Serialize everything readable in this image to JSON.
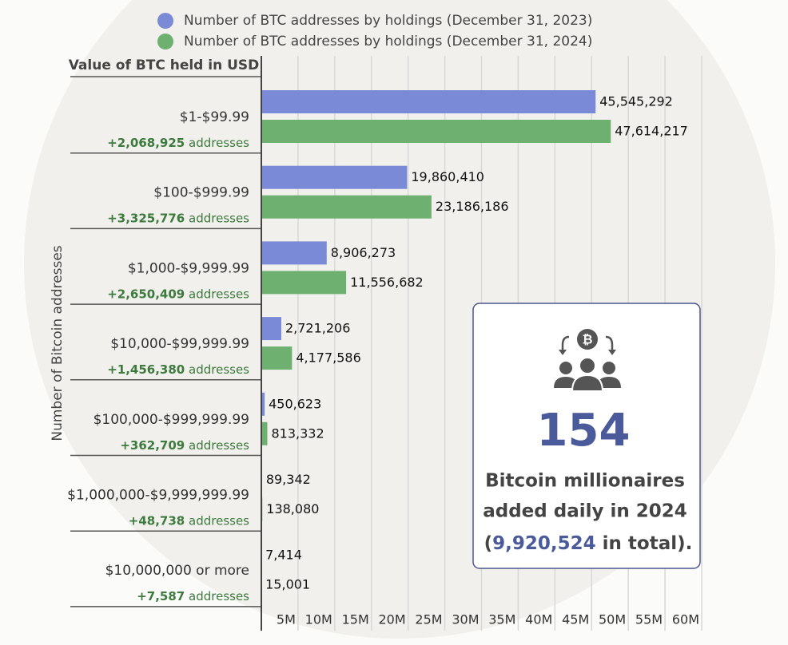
{
  "chart_data": {
    "type": "hbar",
    "y_label": "Number of Bitcoin addresses",
    "category_header": "Value of BTC held in USD",
    "categories": [
      "$1-$99.99",
      "$100-$999.99",
      "$1,000-$9,999.99",
      "$10,000-$99,999.99",
      "$100,000-$999,999.99",
      "$1,000,000-$9,999,999.99",
      "$10,000,000 or more"
    ],
    "change_labels": [
      "+2,068,925",
      "+3,325,776",
      "+2,650,409",
      "+1,456,380",
      "+362,709",
      "+48,738",
      "+7,587"
    ],
    "change_unit": "addresses",
    "series": [
      {
        "name": "Number of BTC addresses by holdings (December 31, 2023)",
        "color": "#7b8ad6",
        "values": [
          45545292,
          19860410,
          8906273,
          2721206,
          450623,
          89342,
          7414
        ],
        "value_labels": [
          "45,545,292",
          "19,860,410",
          "8,906,273",
          "2,721,206",
          "450,623",
          "89,342",
          "7,414"
        ]
      },
      {
        "name": "Number of BTC addresses by holdings (December 31, 2024)",
        "color": "#6db06f",
        "values": [
          47614217,
          23186186,
          11556682,
          4177586,
          813332,
          138080,
          15001
        ],
        "value_labels": [
          "47,614,217",
          "23,186,186",
          "11,556,682",
          "4,177,586",
          "813,332",
          "138,080",
          "15,001"
        ]
      }
    ],
    "xlim": [
      0,
      60000000
    ],
    "xticks": [
      {
        "value": 5000000,
        "label": "5M"
      },
      {
        "value": 10000000,
        "label": "10M"
      },
      {
        "value": 15000000,
        "label": "15M"
      },
      {
        "value": 20000000,
        "label": "20M"
      },
      {
        "value": 25000000,
        "label": "25M"
      },
      {
        "value": 30000000,
        "label": "30M"
      },
      {
        "value": 35000000,
        "label": "35M"
      },
      {
        "value": 40000000,
        "label": "40M"
      },
      {
        "value": 45000000,
        "label": "45M"
      },
      {
        "value": 50000000,
        "label": "50M"
      },
      {
        "value": 55000000,
        "label": "55M"
      },
      {
        "value": 60000000,
        "label": "60M"
      }
    ],
    "grid": true,
    "callout": {
      "number": 154,
      "line1": "Bitcoin millionaires",
      "line2": "added daily in 2024",
      "total_prefix": "(",
      "total": "9,920,524",
      "total_suffix": " in total)."
    }
  }
}
